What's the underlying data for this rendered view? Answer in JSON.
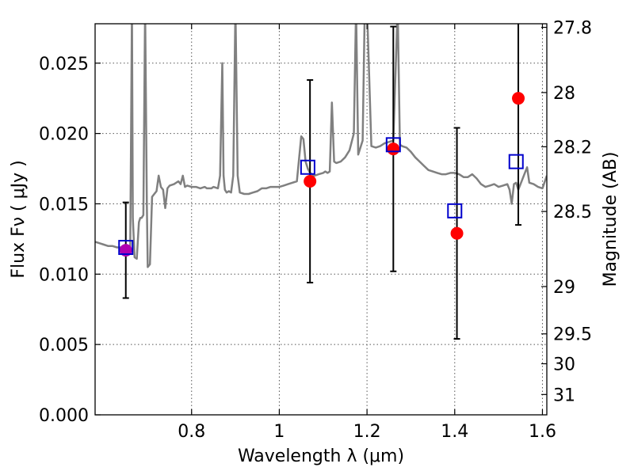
{
  "chart_data": {
    "type": "scatter",
    "xlabel": "Wavelength  λ (μm)",
    "ylabel": "Flux  Fν  ( μJy )",
    "y2label": "Magnitude (AB)",
    "xlim": [
      0.58,
      1.61
    ],
    "ylim": [
      0.0,
      0.0278
    ],
    "grid": true,
    "x_ticks": [
      {
        "value": 0.8,
        "label": "0.8"
      },
      {
        "value": 1.0,
        "label": "1"
      },
      {
        "value": 1.2,
        "label": "1.2"
      },
      {
        "value": 1.4,
        "label": "1.4"
      },
      {
        "value": 1.6,
        "label": "1.6"
      }
    ],
    "y_ticks": [
      {
        "value": 0.0,
        "label": "0.000"
      },
      {
        "value": 0.005,
        "label": "0.005"
      },
      {
        "value": 0.01,
        "label": "0.010"
      },
      {
        "value": 0.015,
        "label": "0.015"
      },
      {
        "value": 0.02,
        "label": "0.020"
      },
      {
        "value": 0.025,
        "label": "0.025"
      }
    ],
    "y2_ticks": [
      {
        "value": 27.8,
        "label": "27.8"
      },
      {
        "value": 28.0,
        "label": "28"
      },
      {
        "value": 28.2,
        "label": "28.2"
      },
      {
        "value": 28.5,
        "label": "28.5"
      },
      {
        "value": 29.0,
        "label": "29"
      },
      {
        "value": 29.5,
        "label": "29.5"
      },
      {
        "value": 30.0,
        "label": "30"
      },
      {
        "value": 31.0,
        "label": "31"
      }
    ],
    "colors": {
      "template": "#808080",
      "observed": "#ff0000",
      "model": "#0000cc",
      "overlap": "#b000b0",
      "errorbar": "#000000",
      "grid": "#555555"
    },
    "observed": [
      {
        "x": 0.65,
        "y": 0.0117,
        "err": 0.0034
      },
      {
        "x": 1.07,
        "y": 0.0166,
        "err": 0.0072
      },
      {
        "x": 1.26,
        "y": 0.0189,
        "err": 0.0087
      },
      {
        "x": 1.405,
        "y": 0.0129,
        "err": 0.0075
      },
      {
        "x": 1.545,
        "y": 0.0225,
        "err": 0.009
      }
    ],
    "model_points": [
      {
        "x": 0.65,
        "y": 0.0119
      },
      {
        "x": 1.065,
        "y": 0.0176
      },
      {
        "x": 1.26,
        "y": 0.0192
      },
      {
        "x": 1.4,
        "y": 0.0145
      },
      {
        "x": 1.54,
        "y": 0.018
      }
    ],
    "template_spectrum": [
      [
        0.58,
        0.0123
      ],
      [
        0.59,
        0.0122
      ],
      [
        0.6,
        0.0121
      ],
      [
        0.61,
        0.012
      ],
      [
        0.62,
        0.012
      ],
      [
        0.63,
        0.0119
      ],
      [
        0.64,
        0.0119
      ],
      [
        0.65,
        0.0118
      ],
      [
        0.66,
        0.0117
      ],
      [
        0.662,
        0.02
      ],
      [
        0.664,
        0.029
      ],
      [
        0.666,
        0.014
      ],
      [
        0.67,
        0.0112
      ],
      [
        0.675,
        0.0111
      ],
      [
        0.68,
        0.0137
      ],
      [
        0.683,
        0.014
      ],
      [
        0.686,
        0.014
      ],
      [
        0.69,
        0.0142
      ],
      [
        0.694,
        0.029
      ],
      [
        0.698,
        0.015
      ],
      [
        0.7,
        0.0105
      ],
      [
        0.705,
        0.0107
      ],
      [
        0.71,
        0.0155
      ],
      [
        0.715,
        0.0157
      ],
      [
        0.72,
        0.0159
      ],
      [
        0.725,
        0.017
      ],
      [
        0.73,
        0.0162
      ],
      [
        0.735,
        0.016
      ],
      [
        0.74,
        0.0147
      ],
      [
        0.745,
        0.0161
      ],
      [
        0.75,
        0.0163
      ],
      [
        0.76,
        0.0164
      ],
      [
        0.77,
        0.0166
      ],
      [
        0.775,
        0.0164
      ],
      [
        0.78,
        0.017
      ],
      [
        0.785,
        0.0162
      ],
      [
        0.79,
        0.0163
      ],
      [
        0.8,
        0.0162
      ],
      [
        0.81,
        0.0162
      ],
      [
        0.82,
        0.0161
      ],
      [
        0.83,
        0.0162
      ],
      [
        0.835,
        0.0161
      ],
      [
        0.84,
        0.0161
      ],
      [
        0.845,
        0.0161
      ],
      [
        0.85,
        0.0162
      ],
      [
        0.86,
        0.0161
      ],
      [
        0.865,
        0.017
      ],
      [
        0.87,
        0.025
      ],
      [
        0.873,
        0.017
      ],
      [
        0.876,
        0.016
      ],
      [
        0.88,
        0.0158
      ],
      [
        0.885,
        0.0159
      ],
      [
        0.89,
        0.0158
      ],
      [
        0.895,
        0.017
      ],
      [
        0.9,
        0.029
      ],
      [
        0.905,
        0.017
      ],
      [
        0.91,
        0.0158
      ],
      [
        0.92,
        0.0157
      ],
      [
        0.93,
        0.0157
      ],
      [
        0.94,
        0.0158
      ],
      [
        0.95,
        0.0159
      ],
      [
        0.96,
        0.0161
      ],
      [
        0.97,
        0.0161
      ],
      [
        0.98,
        0.0162
      ],
      [
        0.99,
        0.0162
      ],
      [
        1.0,
        0.0162
      ],
      [
        1.01,
        0.0163
      ],
      [
        1.02,
        0.0164
      ],
      [
        1.03,
        0.0165
      ],
      [
        1.04,
        0.0166
      ],
      [
        1.05,
        0.0198
      ],
      [
        1.055,
        0.0196
      ],
      [
        1.06,
        0.018
      ],
      [
        1.065,
        0.0175
      ],
      [
        1.07,
        0.0172
      ],
      [
        1.08,
        0.017
      ],
      [
        1.09,
        0.0171
      ],
      [
        1.1,
        0.0172
      ],
      [
        1.105,
        0.0173
      ],
      [
        1.11,
        0.0172
      ],
      [
        1.115,
        0.0173
      ],
      [
        1.12,
        0.0222
      ],
      [
        1.125,
        0.018
      ],
      [
        1.13,
        0.0179
      ],
      [
        1.14,
        0.018
      ],
      [
        1.15,
        0.0183
      ],
      [
        1.16,
        0.0188
      ],
      [
        1.17,
        0.02
      ],
      [
        1.175,
        0.029
      ],
      [
        1.18,
        0.0185
      ],
      [
        1.19,
        0.0195
      ],
      [
        1.195,
        0.029
      ],
      [
        1.2,
        0.029
      ],
      [
        1.21,
        0.0191
      ],
      [
        1.22,
        0.019
      ],
      [
        1.23,
        0.0191
      ],
      [
        1.24,
        0.0193
      ],
      [
        1.25,
        0.0194
      ],
      [
        1.26,
        0.0195
      ],
      [
        1.27,
        0.029
      ],
      [
        1.275,
        0.0192
      ],
      [
        1.28,
        0.0191
      ],
      [
        1.29,
        0.019
      ],
      [
        1.3,
        0.0187
      ],
      [
        1.31,
        0.0183
      ],
      [
        1.32,
        0.018
      ],
      [
        1.33,
        0.0177
      ],
      [
        1.34,
        0.0174
      ],
      [
        1.35,
        0.0173
      ],
      [
        1.36,
        0.0172
      ],
      [
        1.37,
        0.0171
      ],
      [
        1.38,
        0.0171
      ],
      [
        1.39,
        0.0172
      ],
      [
        1.4,
        0.0172
      ],
      [
        1.41,
        0.0171
      ],
      [
        1.42,
        0.0169
      ],
      [
        1.43,
        0.0169
      ],
      [
        1.44,
        0.0171
      ],
      [
        1.45,
        0.0168
      ],
      [
        1.46,
        0.0164
      ],
      [
        1.47,
        0.0162
      ],
      [
        1.48,
        0.0163
      ],
      [
        1.49,
        0.0164
      ],
      [
        1.5,
        0.0162
      ],
      [
        1.51,
        0.0163
      ],
      [
        1.52,
        0.0164
      ],
      [
        1.525,
        0.016
      ],
      [
        1.53,
        0.015
      ],
      [
        1.535,
        0.0164
      ],
      [
        1.54,
        0.0165
      ],
      [
        1.545,
        0.016
      ],
      [
        1.55,
        0.0164
      ],
      [
        1.56,
        0.0172
      ],
      [
        1.565,
        0.0176
      ],
      [
        1.57,
        0.0165
      ],
      [
        1.58,
        0.0164
      ],
      [
        1.59,
        0.0162
      ],
      [
        1.6,
        0.0161
      ],
      [
        1.61,
        0.017
      ]
    ]
  }
}
